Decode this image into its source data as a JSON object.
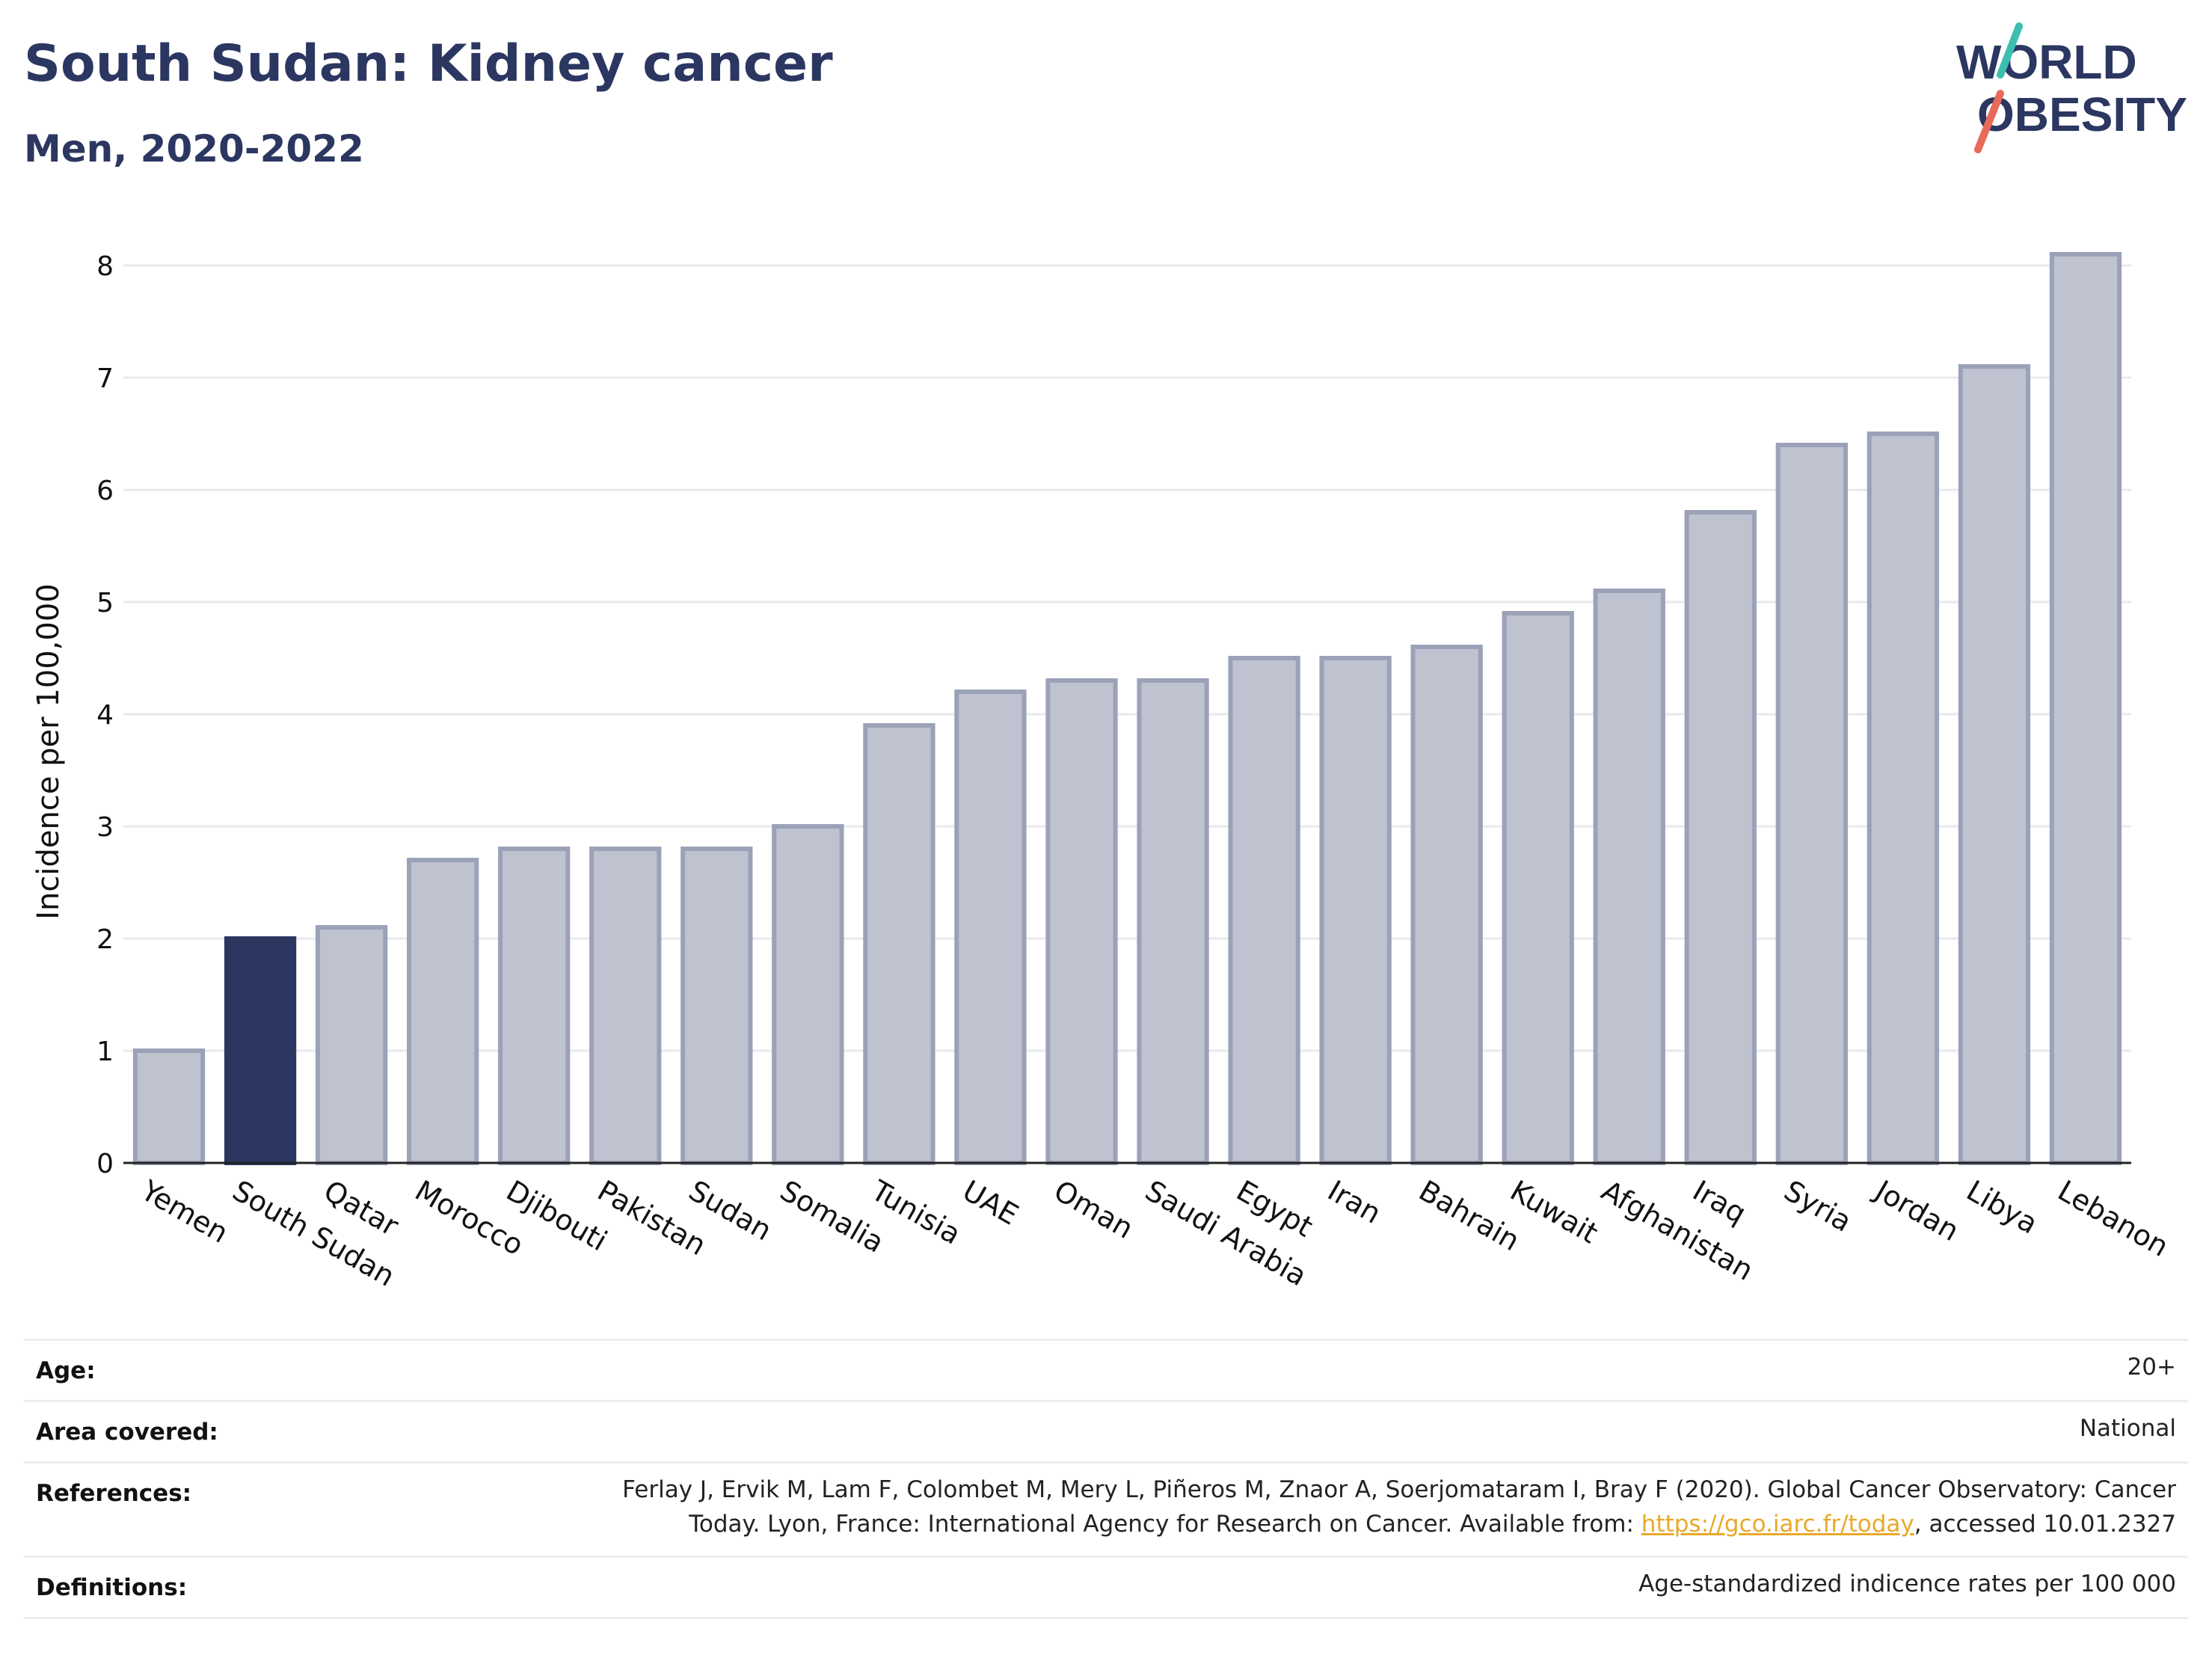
{
  "header": {
    "title": "South Sudan: Kidney cancer",
    "subtitle": "Men, 2020-2022"
  },
  "logo": {
    "line1": "WORLD",
    "line2": "OBESITY"
  },
  "chart_data": {
    "type": "bar",
    "ylabel": "Incidence per 100,000",
    "xlabel": "",
    "ylim": [
      0,
      8.3
    ],
    "yticks": [
      0,
      1,
      2,
      3,
      4,
      5,
      6,
      7,
      8
    ],
    "grid": true,
    "categories": [
      "Yemen",
      "South Sudan",
      "Qatar",
      "Morocco",
      "Djibouti",
      "Pakistan",
      "Sudan",
      "Somalia",
      "Tunisia",
      "UAE",
      "Oman",
      "Saudi Arabia",
      "Egypt",
      "Iran",
      "Bahrain",
      "Kuwait",
      "Afghanistan",
      "Iraq",
      "Syria",
      "Jordan",
      "Libya",
      "Lebanon"
    ],
    "values": [
      1.0,
      2.0,
      2.1,
      2.7,
      2.8,
      2.8,
      2.8,
      3.0,
      3.9,
      4.2,
      4.3,
      4.3,
      4.5,
      4.5,
      4.6,
      4.9,
      5.1,
      5.8,
      6.4,
      6.5,
      7.1,
      8.1
    ],
    "highlight": "South Sudan",
    "colors": {
      "bar": "#bfc2cf",
      "bar_edge": "#9ba2b8",
      "highlight": "#2b3761",
      "grid": "#e9eaee",
      "axis": "#222222"
    }
  },
  "info": {
    "age_label": "Age:",
    "age_value": "20+",
    "area_label": "Area covered:",
    "area_value": "National",
    "references_label": "References:",
    "references_line1": "Ferlay J, Ervik M, Lam F, Colombet M, Mery L, Piñeros M, Znaor A, Soerjomataram I, Bray F (2020). Global Cancer Observatory: Cancer",
    "references_line2_pre": "Today. Lyon, France: International Agency for Research on Cancer. Available from: ",
    "references_link": "https://gco.iarc.fr/today",
    "references_line2_post": ", accessed 10.01.2327",
    "definitions_label": "Definitions:",
    "definitions_value": "Age-standardized indicence rates per 100 000"
  }
}
